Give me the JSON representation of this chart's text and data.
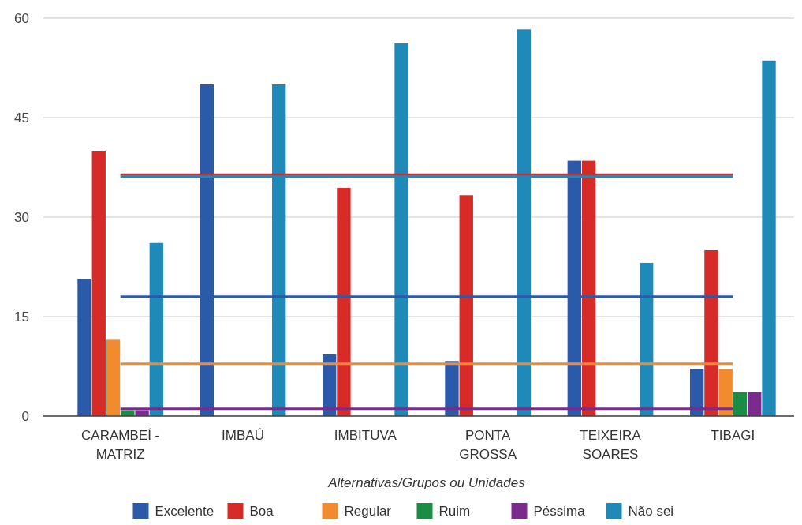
{
  "chart_data": {
    "type": "bar",
    "xlabel": "Alternativas/Grupos ou Unidades",
    "categories": [
      "CARAMBEÍ - MATRIZ",
      "IMBAÚ",
      "IMBITUVA",
      "PONTA GROSSA",
      "TEIXEIRA SOARES",
      "TIBAGI"
    ],
    "series": [
      {
        "name": "Excelente",
        "color": "#2b5aa8",
        "values": [
          20.7,
          50,
          9.3,
          8.3,
          38.5,
          7.1
        ]
      },
      {
        "name": "Boa",
        "color": "#d62b27",
        "values": [
          40,
          0,
          34.4,
          33.3,
          38.5,
          25
        ]
      },
      {
        "name": "Regular",
        "color": "#f28a2e",
        "values": [
          11.5,
          0,
          0,
          0,
          0,
          7.1
        ]
      },
      {
        "name": "Ruim",
        "color": "#1b8c43",
        "values": [
          0.9,
          0,
          0,
          0,
          0,
          3.6
        ]
      },
      {
        "name": "Péssima",
        "color": "#7b2a8e",
        "values": [
          0.9,
          0,
          0,
          0,
          0,
          3.6
        ]
      },
      {
        "name": "Não sei",
        "color": "#1f8ab8",
        "values": [
          26.1,
          50,
          56.2,
          58.3,
          23.1,
          53.6
        ]
      }
    ],
    "ylim": [
      0,
      60
    ],
    "yticks": [
      0,
      15,
      30,
      45,
      60
    ],
    "grid": "y",
    "legend": "bottom",
    "ref_lines": [
      {
        "axis": "y",
        "value": 36.4,
        "color": "#d62b27"
      },
      {
        "axis": "y",
        "value": 36.1,
        "color": "#1f8ab8"
      },
      {
        "axis": "y",
        "value": 18,
        "color": "#2b5aa8"
      },
      {
        "axis": "y",
        "value": 7.9,
        "color": "#f28a2e"
      },
      {
        "axis": "y",
        "value": 1.1,
        "color": "#7b2a8e"
      }
    ]
  }
}
